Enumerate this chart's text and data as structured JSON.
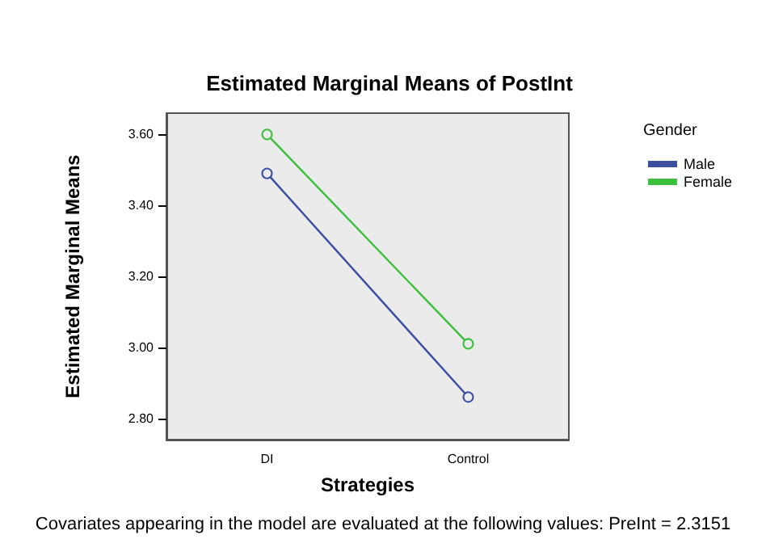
{
  "chart_data": {
    "type": "line",
    "title": "Estimated Marginal Means of PostInt",
    "xlabel": "Strategies",
    "ylabel": "Estimated Marginal Means",
    "legend_title": "Gender",
    "categories": [
      "DI",
      "Control"
    ],
    "series": [
      {
        "name": "Male",
        "color": "#3b4ea0",
        "values": [
          3.49,
          2.86
        ]
      },
      {
        "name": "Female",
        "color": "#3cbf3c",
        "values": [
          3.6,
          3.01
        ]
      }
    ],
    "ylim": [
      2.74,
      3.66
    ],
    "yticks": [
      {
        "value": 2.8,
        "label": "2.80"
      },
      {
        "value": 3.0,
        "label": "3.00"
      },
      {
        "value": 3.2,
        "label": "3.20"
      },
      {
        "value": 3.4,
        "label": "3.40"
      },
      {
        "value": 3.6,
        "label": "3.60"
      }
    ],
    "marker": "circle",
    "line_style": "solid",
    "grid": false,
    "legend": "top right",
    "annotations": [
      "Covariates appearing in the model are evaluated at the following values: PreInt = 2.3151"
    ]
  }
}
